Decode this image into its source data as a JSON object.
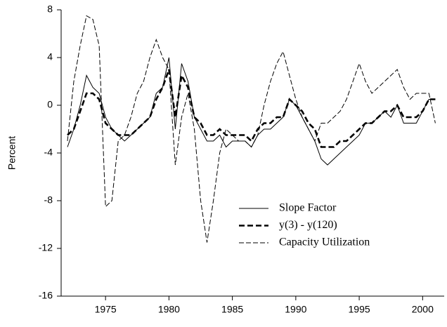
{
  "chart_data": {
    "type": "line",
    "y_label": "Percent",
    "x": [
      1972.0,
      1972.5,
      1973.0,
      1973.5,
      1974.0,
      1974.5,
      1975.0,
      1975.5,
      1976.0,
      1976.5,
      1977.0,
      1977.5,
      1978.0,
      1978.5,
      1979.0,
      1979.5,
      1980.0,
      1980.5,
      1981.0,
      1981.5,
      1982.0,
      1982.5,
      1983.0,
      1983.5,
      1984.0,
      1984.5,
      1985.0,
      1985.5,
      1986.0,
      1986.5,
      1987.0,
      1987.5,
      1988.0,
      1988.5,
      1989.0,
      1989.5,
      1990.0,
      1990.5,
      1991.0,
      1991.5,
      1992.0,
      1992.5,
      1993.0,
      1993.5,
      1994.0,
      1994.5,
      1995.0,
      1995.5,
      1996.0,
      1996.5,
      1997.0,
      1997.5,
      1998.0,
      1998.5,
      1999.0,
      1999.5,
      2000.0,
      2000.5,
      2001.0
    ],
    "series": [
      {
        "name": "Slope Factor",
        "color": "#000000",
        "style": "solid",
        "width": 1,
        "values": [
          -3.5,
          -2,
          0,
          2.5,
          1.5,
          1,
          -1,
          -2,
          -2.5,
          -3,
          -2.5,
          -2,
          -1.5,
          -1,
          1,
          1.5,
          4,
          -2,
          3.5,
          2,
          -1,
          -2,
          -3,
          -3,
          -2.5,
          -3.5,
          -3,
          -3,
          -3,
          -3.5,
          -2.5,
          -2,
          -2,
          -1.5,
          -1,
          0.5,
          0,
          -1,
          -2,
          -3,
          -4.5,
          -5,
          -4.5,
          -4,
          -3.5,
          -3,
          -2.5,
          -1.5,
          -1.5,
          -1,
          -0.5,
          -1,
          0,
          -1.5,
          -1.5,
          -1.5,
          -0.5,
          0.5,
          0.5
        ]
      },
      {
        "name": "y(3) - y(120)",
        "color": "#000000",
        "style": "dashed",
        "width": 2.6,
        "values": [
          -2.5,
          -2,
          -0.5,
          1,
          1,
          0.5,
          -1.5,
          -2,
          -2.5,
          -2.5,
          -2.5,
          -2,
          -1.5,
          -1,
          0.5,
          1.5,
          3,
          -1,
          2.5,
          1.5,
          -1,
          -1.5,
          -2.5,
          -2.5,
          -2,
          -2.5,
          -2.5,
          -2.5,
          -2.5,
          -3,
          -2,
          -1.5,
          -1.5,
          -1,
          -1,
          0.5,
          0,
          -0.5,
          -1.5,
          -2,
          -3.5,
          -3.5,
          -3.5,
          -3,
          -3,
          -2.5,
          -2,
          -1.5,
          -1.5,
          -1,
          -0.5,
          -0.5,
          0,
          -1,
          -1,
          -1,
          -0.5,
          0.5,
          0.5
        ]
      },
      {
        "name": "Capacity Utilization",
        "color": "#000000",
        "style": "dashed",
        "width": 1,
        "values": [
          -3,
          2,
          5,
          7.5,
          7.2,
          5,
          -8.5,
          -8,
          -3,
          -2.5,
          -1,
          1,
          2,
          4,
          5.5,
          4,
          3,
          -5,
          -1,
          1,
          -2,
          -8,
          -11.5,
          -8,
          -4,
          -2,
          -2.5,
          -3,
          -3,
          -3.5,
          -2.5,
          0,
          2,
          3.5,
          4.5,
          2.5,
          0.5,
          -1,
          -2,
          -3,
          -1.5,
          -1.5,
          -1,
          -0.5,
          0.5,
          2,
          3.5,
          2,
          1,
          1.5,
          2,
          2.5,
          3,
          1.5,
          0.5,
          1,
          1,
          1,
          -1.5
        ]
      }
    ],
    "xlim": [
      1971.5,
      2001.7
    ],
    "xticks": [
      1975,
      1980,
      1985,
      1990,
      1995,
      2000
    ],
    "ylim": [
      -16,
      8
    ],
    "yticks": [
      -16,
      -12,
      -8,
      -4,
      0,
      4,
      8
    ],
    "legend": "lower right"
  }
}
